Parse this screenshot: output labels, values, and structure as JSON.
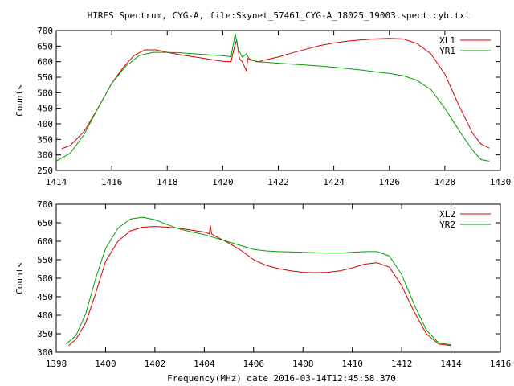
{
  "title": "HIRES Spectrum, CYG-A, file:Skynet_57461_CYG-A_18025_19003.spect.cyb.txt",
  "colors": {
    "red": "#d40000",
    "green": "#00a000",
    "axis": "#000000"
  },
  "chart_data": [
    {
      "type": "line",
      "ylabel": "Counts",
      "xlabel": "",
      "xlim": [
        1414,
        1430
      ],
      "ylim": [
        250,
        700
      ],
      "xticks": [
        1414,
        1416,
        1418,
        1420,
        1422,
        1424,
        1426,
        1428,
        1430
      ],
      "yticks": [
        250,
        300,
        350,
        400,
        450,
        500,
        550,
        600,
        650,
        700
      ],
      "legend_position": "top-right",
      "series": [
        {
          "name": "XL1",
          "color": "#d40000",
          "x": [
            1414.2,
            1414.5,
            1415.0,
            1415.5,
            1416.0,
            1416.4,
            1416.8,
            1417.2,
            1417.6,
            1418.0,
            1418.5,
            1419.0,
            1419.5,
            1420.0,
            1420.3,
            1420.4,
            1420.5,
            1420.6,
            1420.7,
            1420.85,
            1420.9,
            1421.0,
            1421.3,
            1421.5,
            1422.0,
            1422.5,
            1423.0,
            1423.5,
            1424.0,
            1424.5,
            1425.0,
            1425.5,
            1426.0,
            1426.5,
            1427.0,
            1427.5,
            1428.0,
            1428.5,
            1429.0,
            1429.3,
            1429.6
          ],
          "y": [
            320,
            330,
            375,
            450,
            530,
            580,
            620,
            638,
            638,
            630,
            622,
            615,
            608,
            601,
            600,
            640,
            670,
            610,
            600,
            570,
            610,
            605,
            600,
            605,
            615,
            628,
            640,
            652,
            660,
            666,
            670,
            673,
            675,
            673,
            658,
            625,
            560,
            460,
            370,
            335,
            322
          ]
        },
        {
          "name": "YR1",
          "color": "#00a000",
          "x": [
            1414.0,
            1414.5,
            1415.0,
            1415.5,
            1416.0,
            1416.5,
            1417.0,
            1417.5,
            1418.0,
            1418.5,
            1419.0,
            1419.5,
            1420.0,
            1420.3,
            1420.45,
            1420.55,
            1420.7,
            1420.85,
            1420.95,
            1421.2,
            1421.5,
            1422.0,
            1422.5,
            1423.0,
            1423.5,
            1424.0,
            1424.5,
            1425.0,
            1425.5,
            1426.0,
            1426.5,
            1427.0,
            1427.5,
            1428.0,
            1428.5,
            1429.0,
            1429.3,
            1429.6
          ],
          "y": [
            280,
            305,
            365,
            450,
            530,
            585,
            620,
            630,
            630,
            628,
            625,
            622,
            619,
            616,
            690,
            640,
            615,
            625,
            610,
            600,
            598,
            595,
            592,
            589,
            586,
            582,
            578,
            573,
            567,
            562,
            555,
            540,
            510,
            450,
            380,
            315,
            285,
            280
          ]
        }
      ]
    },
    {
      "type": "line",
      "ylabel": "Counts",
      "xlabel": "Frequency(MHz) date 2016-03-14T12:45:58.370",
      "xlim": [
        1398,
        1416
      ],
      "ylim": [
        300,
        700
      ],
      "xticks": [
        1398,
        1400,
        1402,
        1404,
        1406,
        1408,
        1410,
        1412,
        1414,
        1416
      ],
      "yticks": [
        300,
        350,
        400,
        450,
        500,
        550,
        600,
        650,
        700
      ],
      "legend_position": "top-right",
      "series": [
        {
          "name": "XL2",
          "color": "#d40000",
          "x": [
            1398.5,
            1398.8,
            1399.2,
            1399.6,
            1400.0,
            1400.5,
            1401.0,
            1401.5,
            1402.0,
            1402.5,
            1403.0,
            1403.5,
            1404.0,
            1404.2,
            1404.25,
            1404.3,
            1404.5,
            1405.0,
            1405.5,
            1406.0,
            1406.5,
            1407.0,
            1407.5,
            1408.0,
            1408.5,
            1409.0,
            1409.5,
            1410.0,
            1410.5,
            1411.0,
            1411.5,
            1412.0,
            1412.5,
            1413.0,
            1413.5,
            1414.0
          ],
          "y": [
            318,
            335,
            380,
            460,
            545,
            600,
            628,
            638,
            640,
            638,
            635,
            630,
            625,
            620,
            642,
            620,
            612,
            595,
            575,
            550,
            535,
            526,
            520,
            516,
            515,
            516,
            520,
            528,
            538,
            542,
            530,
            480,
            410,
            350,
            322,
            318
          ]
        },
        {
          "name": "YR2",
          "color": "#00a000",
          "x": [
            1398.4,
            1398.8,
            1399.2,
            1399.6,
            1400.0,
            1400.5,
            1401.0,
            1401.5,
            1402.0,
            1402.5,
            1403.0,
            1403.5,
            1404.0,
            1404.5,
            1405.0,
            1405.5,
            1406.0,
            1406.5,
            1407.0,
            1407.5,
            1408.0,
            1408.5,
            1409.0,
            1409.5,
            1410.0,
            1410.5,
            1411.0,
            1411.5,
            1412.0,
            1412.5,
            1413.0,
            1413.5,
            1414.0
          ],
          "y": [
            322,
            345,
            405,
            500,
            580,
            635,
            660,
            665,
            658,
            645,
            633,
            625,
            618,
            608,
            598,
            588,
            578,
            574,
            572,
            571,
            570,
            569,
            568,
            568,
            570,
            572,
            572,
            560,
            510,
            430,
            360,
            325,
            320
          ]
        }
      ]
    }
  ]
}
